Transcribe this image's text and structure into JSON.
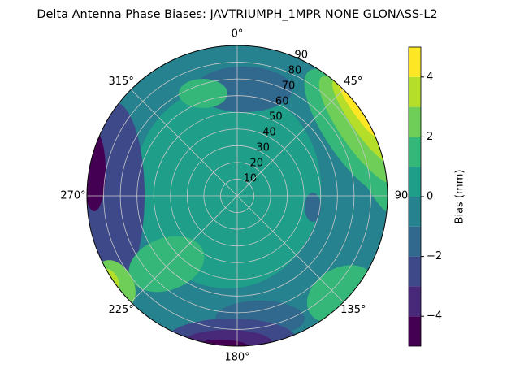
{
  "chart_data": {
    "type": "polar-contour",
    "title": "Delta Antenna Phase Biases: JAVTRIUMPH_1MPR NONE GLONASS-L2",
    "colorbar_label": "Bias (mm)",
    "levels": [
      -5,
      -4,
      -3,
      -2,
      -1,
      0,
      1,
      2,
      3,
      4,
      5
    ],
    "colors": [
      "#440154",
      "#482878",
      "#3e4989",
      "#31688e",
      "#26828e",
      "#1f9e89",
      "#35b779",
      "#6ece58",
      "#b5de2b",
      "#fde725"
    ],
    "cticks": [
      {
        "value": -4,
        "label": "−4"
      },
      {
        "value": -2,
        "label": "−2"
      },
      0,
      2,
      4
    ],
    "rlim": [
      0,
      90
    ],
    "rticks": [
      10,
      20,
      30,
      40,
      50,
      60,
      70,
      80,
      90
    ],
    "thetaticks": [
      {
        "value": 0,
        "label": "0°"
      },
      {
        "value": 45,
        "label": "45°"
      },
      {
        "value": 90,
        "label": "90"
      },
      {
        "value": 135,
        "label": "135°"
      },
      {
        "value": 180,
        "label": "180°"
      },
      {
        "value": 225,
        "label": "225°"
      },
      {
        "value": 270,
        "label": "270°"
      },
      {
        "value": 315,
        "label": "315°"
      }
    ],
    "grid": true
  }
}
